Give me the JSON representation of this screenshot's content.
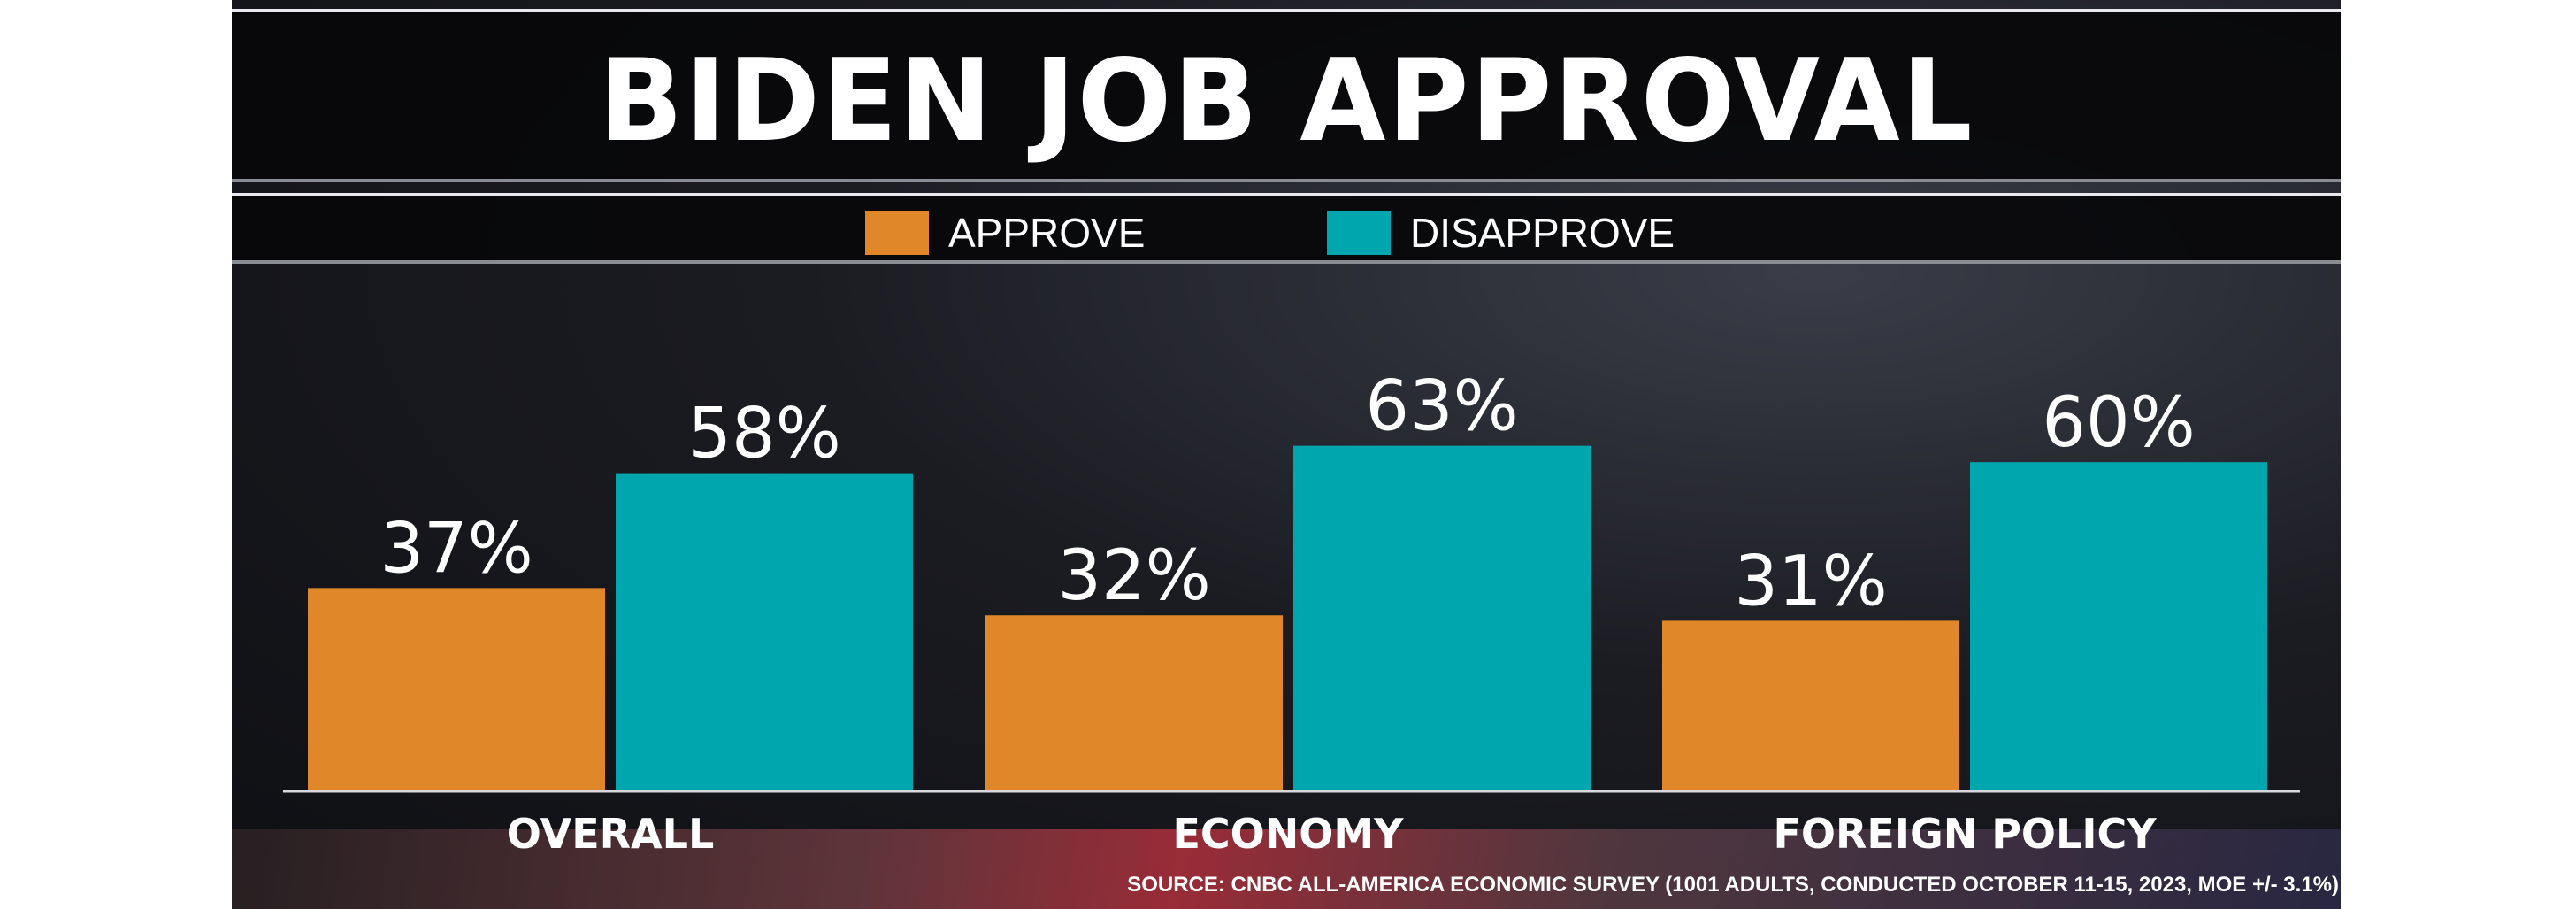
{
  "chart_data": {
    "type": "bar",
    "title": "BIDEN JOB APPROVAL",
    "categories": [
      "OVERALL",
      "ECONOMY",
      "FOREIGN POLICY"
    ],
    "series": [
      {
        "name": "APPROVE",
        "color": "#E0872A",
        "values": [
          37,
          32,
          31
        ]
      },
      {
        "name": "DISAPPROVE",
        "color": "#00A6AE",
        "values": [
          58,
          63,
          60
        ]
      }
    ],
    "value_suffix": "%",
    "ylim": [
      0,
      100
    ],
    "grid": false,
    "legend": "top-center",
    "source": "SOURCE: CNBC ALL-AMERICA ECONOMIC SURVEY (1001 ADULTS, CONDUCTED OCTOBER 11-15, 2023, MOE +/- 3.1%)"
  }
}
